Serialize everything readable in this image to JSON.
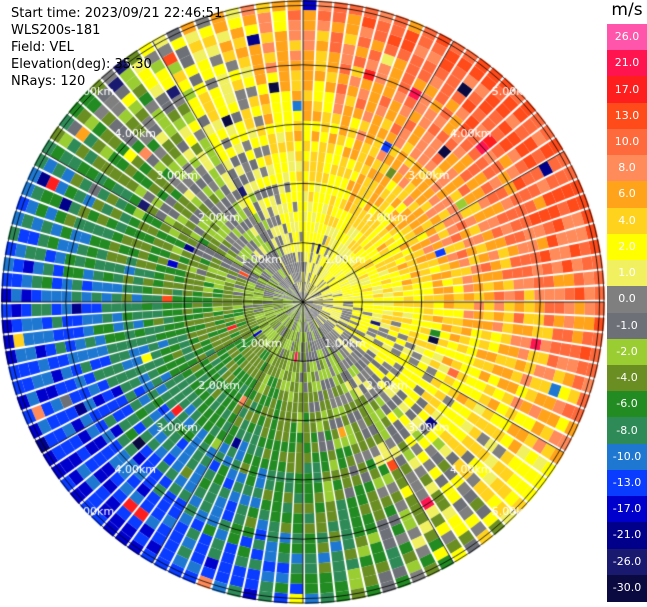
{
  "header": {
    "start_time": "Start time: 2023/09/21 22:46:51",
    "instrument": "WLS200s-181",
    "field": "Field: VEL",
    "elevation": "Elevation(deg): 35.30",
    "nrays": "NRays: 120"
  },
  "colorbar": {
    "title": "m/s",
    "bins": [
      {
        "label": "26.0",
        "color": "#ff55aa"
      },
      {
        "label": "21.0",
        "color": "#ff1450"
      },
      {
        "label": "17.0",
        "color": "#ff1e1e"
      },
      {
        "label": "13.0",
        "color": "#ff4a1a"
      },
      {
        "label": "10.0",
        "color": "#ff6a3c"
      },
      {
        "label": "8.0",
        "color": "#ff8a5a"
      },
      {
        "label": "6.0",
        "color": "#ffa31a"
      },
      {
        "label": "4.0",
        "color": "#ffd21e"
      },
      {
        "label": "2.0",
        "color": "#ffff00"
      },
      {
        "label": "1.0",
        "color": "#f0f060"
      },
      {
        "label": "0.0",
        "color": "#7f7f7f"
      },
      {
        "label": "-1.0",
        "color": "#6e7078"
      },
      {
        "label": "-2.0",
        "color": "#9acd32"
      },
      {
        "label": "-4.0",
        "color": "#6b8e23"
      },
      {
        "label": "-6.0",
        "color": "#228b22"
      },
      {
        "label": "-8.0",
        "color": "#2e8b57"
      },
      {
        "label": "-10.0",
        "color": "#1e78d2"
      },
      {
        "label": "-13.0",
        "color": "#0a3cff"
      },
      {
        "label": "-17.0",
        "color": "#0000cd"
      },
      {
        "label": "-21.0",
        "color": "#00008b"
      },
      {
        "label": "-26.0",
        "color": "#191970"
      },
      {
        "label": "-30.0",
        "color": "#0a0a40"
      }
    ]
  },
  "chart_data": {
    "type": "heatmap",
    "projection": "polar PPI",
    "field": "VEL",
    "units": "m/s",
    "n_rays": 120,
    "range_rings_km": [
      1.0,
      2.0,
      3.0,
      4.0,
      5.0
    ],
    "range_labels": [
      "1.00km",
      "2.00km",
      "3.00km",
      "4.00km",
      "5.00km"
    ],
    "max_range_km": 6.1,
    "radial_lines_deg": [
      0,
      30,
      60,
      90,
      120,
      150,
      180,
      210,
      240,
      270,
      300,
      330
    ],
    "value_min": -30.0,
    "value_max": 26.0,
    "range_gates": 30,
    "velocity_pattern": {
      "description": "dipole: positive (receding) velocities toward the east/northeast, negative (approaching) toward the west/southwest; magnitude increases with range",
      "max_positive_direction": "northeast",
      "max_negative_direction": "southwest",
      "near_zero_band": "northwest to southeast"
    },
    "sector_profiles": [
      {
        "sector": "N",
        "inner": 3.0,
        "outer": 8.0
      },
      {
        "sector": "NE",
        "inner": 3.0,
        "outer": 14.0
      },
      {
        "sector": "E",
        "inner": 2.0,
        "outer": 10.0
      },
      {
        "sector": "SE",
        "inner": 1.0,
        "outer": 3.0
      },
      {
        "sector": "S",
        "inner": -1.0,
        "outer": -4.0
      },
      {
        "sector": "SW",
        "inner": -3.0,
        "outer": -10.0
      },
      {
        "sector": "W",
        "inner": -2.0,
        "outer": -6.0
      },
      {
        "sector": "NW",
        "inner": -1.0,
        "outer": 0.0
      }
    ]
  }
}
